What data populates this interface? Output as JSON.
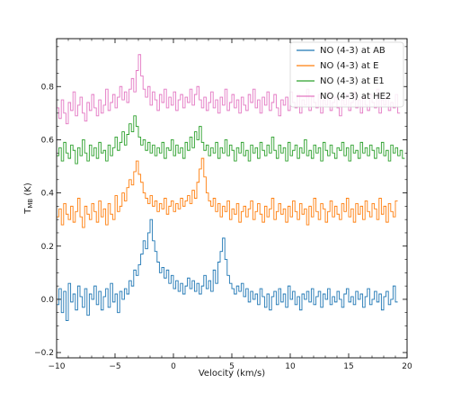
{
  "chart_data": {
    "type": "line",
    "step": true,
    "xlabel": "Velocity (km/s)",
    "ylabel": "T",
    "ylabel_sub": "MB",
    "ylabel_unit": " (K)",
    "xlim": [
      -10,
      20
    ],
    "ylim": [
      -0.22,
      0.98
    ],
    "xticks": [
      -10,
      -5,
      0,
      5,
      10,
      15,
      20
    ],
    "yticks": [
      -0.2,
      0.0,
      0.2,
      0.4,
      0.6,
      0.8
    ],
    "xtick_labels": [
      "−10",
      "−5",
      "0",
      "5",
      "10",
      "15",
      "20"
    ],
    "ytick_labels": [
      "−0.2",
      "0.0",
      "0.2",
      "0.4",
      "0.6",
      "0.8"
    ],
    "legend_position": "top-right",
    "x_start": -10,
    "x_step": 0.2,
    "series": [
      {
        "name": "NO (4-3) at AB",
        "color": "#1f77b4",
        "values": [
          -0.02,
          0.04,
          -0.05,
          0.03,
          -0.08,
          0.06,
          -0.01,
          0.02,
          -0.04,
          0.05,
          0.01,
          -0.03,
          0.04,
          -0.06,
          0.02,
          0.0,
          0.05,
          -0.02,
          0.03,
          -0.04,
          0.01,
          0.04,
          -0.03,
          0.06,
          -0.01,
          0.02,
          -0.05,
          0.03,
          0.0,
          0.04,
          0.02,
          0.07,
          0.05,
          0.11,
          0.09,
          0.13,
          0.17,
          0.22,
          0.19,
          0.25,
          0.3,
          0.22,
          0.18,
          0.14,
          0.1,
          0.12,
          0.08,
          0.11,
          0.06,
          0.09,
          0.04,
          0.07,
          0.03,
          0.06,
          0.02,
          0.05,
          0.08,
          0.04,
          0.07,
          0.03,
          0.06,
          0.02,
          0.05,
          0.09,
          0.04,
          0.07,
          0.03,
          0.11,
          0.06,
          0.14,
          0.18,
          0.23,
          0.15,
          0.09,
          0.06,
          0.04,
          0.02,
          0.05,
          0.03,
          0.06,
          0.01,
          0.04,
          -0.01,
          0.03,
          0.0,
          0.02,
          -0.02,
          0.04,
          0.01,
          -0.03,
          0.02,
          -0.04,
          0.01,
          0.03,
          -0.02,
          0.04,
          -0.01,
          0.02,
          -0.03,
          0.05,
          0.0,
          0.03,
          -0.02,
          0.01,
          -0.04,
          0.02,
          0.0,
          0.03,
          -0.01,
          0.04,
          -0.02,
          0.01,
          0.03,
          -0.03,
          0.02,
          0.0,
          0.04,
          -0.02,
          0.01,
          -0.01,
          0.03,
          0.0,
          -0.03,
          0.02,
          0.04,
          -0.01,
          0.01,
          -0.02,
          0.03,
          0.0,
          0.02,
          -0.03,
          0.01,
          0.04,
          -0.02,
          0.0,
          0.03,
          -0.01,
          0.02,
          -0.04,
          0.01,
          0.03,
          -0.02,
          0.0,
          0.05,
          -0.01
        ]
      },
      {
        "name": "NO (4-3) at E",
        "color": "#ff7f0e",
        "values": [
          0.31,
          0.34,
          0.28,
          0.36,
          0.32,
          0.3,
          0.35,
          0.29,
          0.33,
          0.38,
          0.31,
          0.27,
          0.35,
          0.32,
          0.3,
          0.36,
          0.33,
          0.29,
          0.37,
          0.31,
          0.34,
          0.28,
          0.36,
          0.32,
          0.3,
          0.39,
          0.33,
          0.35,
          0.4,
          0.37,
          0.42,
          0.45,
          0.43,
          0.48,
          0.52,
          0.47,
          0.44,
          0.4,
          0.38,
          0.36,
          0.39,
          0.35,
          0.37,
          0.33,
          0.36,
          0.34,
          0.38,
          0.32,
          0.35,
          0.37,
          0.33,
          0.36,
          0.34,
          0.38,
          0.35,
          0.37,
          0.39,
          0.36,
          0.41,
          0.38,
          0.44,
          0.49,
          0.53,
          0.46,
          0.4,
          0.37,
          0.35,
          0.38,
          0.33,
          0.36,
          0.31,
          0.35,
          0.33,
          0.37,
          0.3,
          0.34,
          0.32,
          0.36,
          0.29,
          0.33,
          0.35,
          0.31,
          0.34,
          0.37,
          0.3,
          0.33,
          0.36,
          0.32,
          0.29,
          0.35,
          0.31,
          0.34,
          0.38,
          0.3,
          0.33,
          0.36,
          0.32,
          0.34,
          0.29,
          0.35,
          0.31,
          0.37,
          0.33,
          0.3,
          0.36,
          0.32,
          0.34,
          0.28,
          0.35,
          0.31,
          0.38,
          0.33,
          0.3,
          0.36,
          0.34,
          0.29,
          0.33,
          0.37,
          0.31,
          0.35,
          0.32,
          0.3,
          0.36,
          0.33,
          0.38,
          0.31,
          0.34,
          0.29,
          0.36,
          0.32,
          0.35,
          0.3,
          0.37,
          0.33,
          0.31,
          0.36,
          0.34,
          0.3,
          0.38,
          0.32,
          0.35,
          0.29,
          0.36,
          0.33,
          0.31,
          0.37
        ]
      },
      {
        "name": "NO (4-3) at E1",
        "color": "#2ca02c",
        "values": [
          0.54,
          0.57,
          0.52,
          0.59,
          0.55,
          0.53,
          0.58,
          0.56,
          0.51,
          0.57,
          0.54,
          0.6,
          0.55,
          0.52,
          0.58,
          0.54,
          0.57,
          0.53,
          0.59,
          0.55,
          0.56,
          0.52,
          0.58,
          0.54,
          0.57,
          0.61,
          0.56,
          0.59,
          0.63,
          0.58,
          0.62,
          0.66,
          0.63,
          0.69,
          0.65,
          0.61,
          0.58,
          0.6,
          0.56,
          0.59,
          0.55,
          0.58,
          0.54,
          0.57,
          0.55,
          0.59,
          0.53,
          0.57,
          0.56,
          0.6,
          0.54,
          0.58,
          0.55,
          0.57,
          0.53,
          0.59,
          0.56,
          0.61,
          0.57,
          0.63,
          0.6,
          0.65,
          0.59,
          0.56,
          0.58,
          0.54,
          0.57,
          0.55,
          0.59,
          0.53,
          0.57,
          0.55,
          0.6,
          0.54,
          0.58,
          0.56,
          0.52,
          0.57,
          0.55,
          0.59,
          0.54,
          0.56,
          0.52,
          0.58,
          0.55,
          0.57,
          0.53,
          0.59,
          0.56,
          0.54,
          0.58,
          0.55,
          0.61,
          0.56,
          0.53,
          0.58,
          0.55,
          0.57,
          0.52,
          0.59,
          0.54,
          0.56,
          0.58,
          0.53,
          0.57,
          0.55,
          0.6,
          0.54,
          0.56,
          0.53,
          0.58,
          0.55,
          0.57,
          0.52,
          0.59,
          0.56,
          0.54,
          0.58,
          0.55,
          0.53,
          0.57,
          0.56,
          0.59,
          0.54,
          0.57,
          0.52,
          0.58,
          0.55,
          0.56,
          0.53,
          0.59,
          0.55,
          0.57,
          0.54,
          0.58,
          0.56,
          0.53,
          0.57,
          0.55,
          0.59,
          0.54,
          0.56,
          0.52,
          0.58,
          0.55,
          0.57,
          0.54,
          0.56,
          0.53
        ]
      },
      {
        "name": "NO (4-3) at HE2",
        "color": "#e377c2",
        "values": [
          0.72,
          0.68,
          0.75,
          0.7,
          0.66,
          0.74,
          0.71,
          0.78,
          0.69,
          0.73,
          0.76,
          0.7,
          0.67,
          0.74,
          0.71,
          0.77,
          0.72,
          0.69,
          0.75,
          0.7,
          0.73,
          0.79,
          0.71,
          0.74,
          0.77,
          0.72,
          0.76,
          0.8,
          0.75,
          0.78,
          0.74,
          0.79,
          0.83,
          0.78,
          0.86,
          0.92,
          0.84,
          0.79,
          0.76,
          0.8,
          0.73,
          0.78,
          0.75,
          0.71,
          0.77,
          0.74,
          0.79,
          0.72,
          0.76,
          0.73,
          0.78,
          0.71,
          0.75,
          0.77,
          0.72,
          0.76,
          0.74,
          0.79,
          0.73,
          0.77,
          0.8,
          0.75,
          0.72,
          0.76,
          0.71,
          0.74,
          0.78,
          0.72,
          0.75,
          0.7,
          0.76,
          0.73,
          0.79,
          0.71,
          0.74,
          0.77,
          0.72,
          0.75,
          0.7,
          0.76,
          0.73,
          0.71,
          0.77,
          0.74,
          0.79,
          0.72,
          0.75,
          0.7,
          0.76,
          0.73,
          0.78,
          0.71,
          0.74,
          0.77,
          0.72,
          0.69,
          0.75,
          0.73,
          0.76,
          0.71,
          0.78,
          0.74,
          0.72,
          0.77,
          0.7,
          0.75,
          0.73,
          0.79,
          0.71,
          0.76,
          0.74,
          0.72,
          0.77,
          0.7,
          0.75,
          0.73,
          0.78,
          0.71,
          0.74,
          0.76,
          0.72,
          0.69,
          0.75,
          0.73,
          0.77,
          0.71,
          0.74,
          0.78,
          0.72,
          0.75,
          0.7,
          0.76,
          0.73,
          0.71,
          0.77,
          0.74,
          0.72,
          0.79,
          0.7,
          0.75,
          0.73,
          0.76,
          0.71,
          0.74,
          0.72,
          0.77,
          0.7
        ]
      }
    ]
  }
}
